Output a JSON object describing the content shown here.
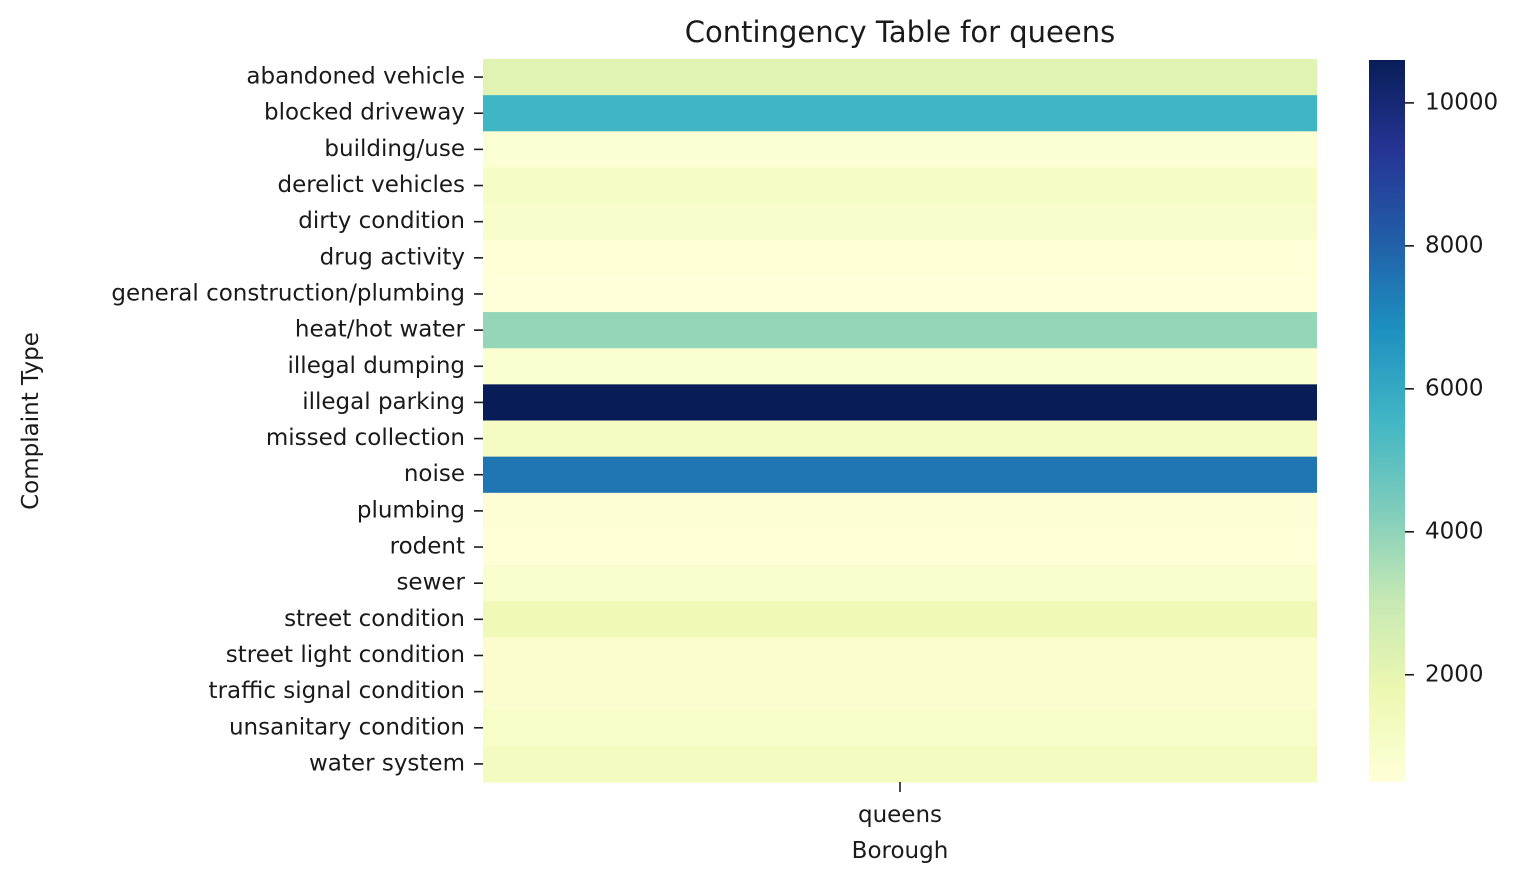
{
  "chart_data": {
    "type": "heatmap",
    "title": "Contingency Table for queens",
    "xlabel": "Borough",
    "ylabel": "Complaint Type",
    "columns": [
      "queens"
    ],
    "rows": [
      "abandoned vehicle",
      "blocked driveway",
      "building/use",
      "derelict vehicles",
      "dirty condition",
      "drug activity",
      "general construction/plumbing",
      "heat/hot water",
      "illegal dumping",
      "illegal parking",
      "missed collection",
      "noise",
      "plumbing",
      "rodent",
      "sewer",
      "street condition",
      "street light condition",
      "traffic signal condition",
      "unsanitary condition",
      "water system"
    ],
    "values": [
      [
        2200
      ],
      [
        5600
      ],
      [
        700
      ],
      [
        1100
      ],
      [
        900
      ],
      [
        550
      ],
      [
        500
      ],
      [
        3900
      ],
      [
        750
      ],
      [
        10600
      ],
      [
        1200
      ],
      [
        7500
      ],
      [
        600
      ],
      [
        550
      ],
      [
        850
      ],
      [
        1500
      ],
      [
        800
      ],
      [
        800
      ],
      [
        1000
      ],
      [
        1300
      ]
    ],
    "colorbar": {
      "colormap": "YlGnBu",
      "range": [
        500,
        10600
      ],
      "ticks": [
        2000,
        4000,
        6000,
        8000,
        10000
      ],
      "tick_labels": [
        "2000",
        "4000",
        "6000",
        "8000",
        "10000"
      ]
    },
    "grid": false,
    "legend": "colorbar-right"
  }
}
